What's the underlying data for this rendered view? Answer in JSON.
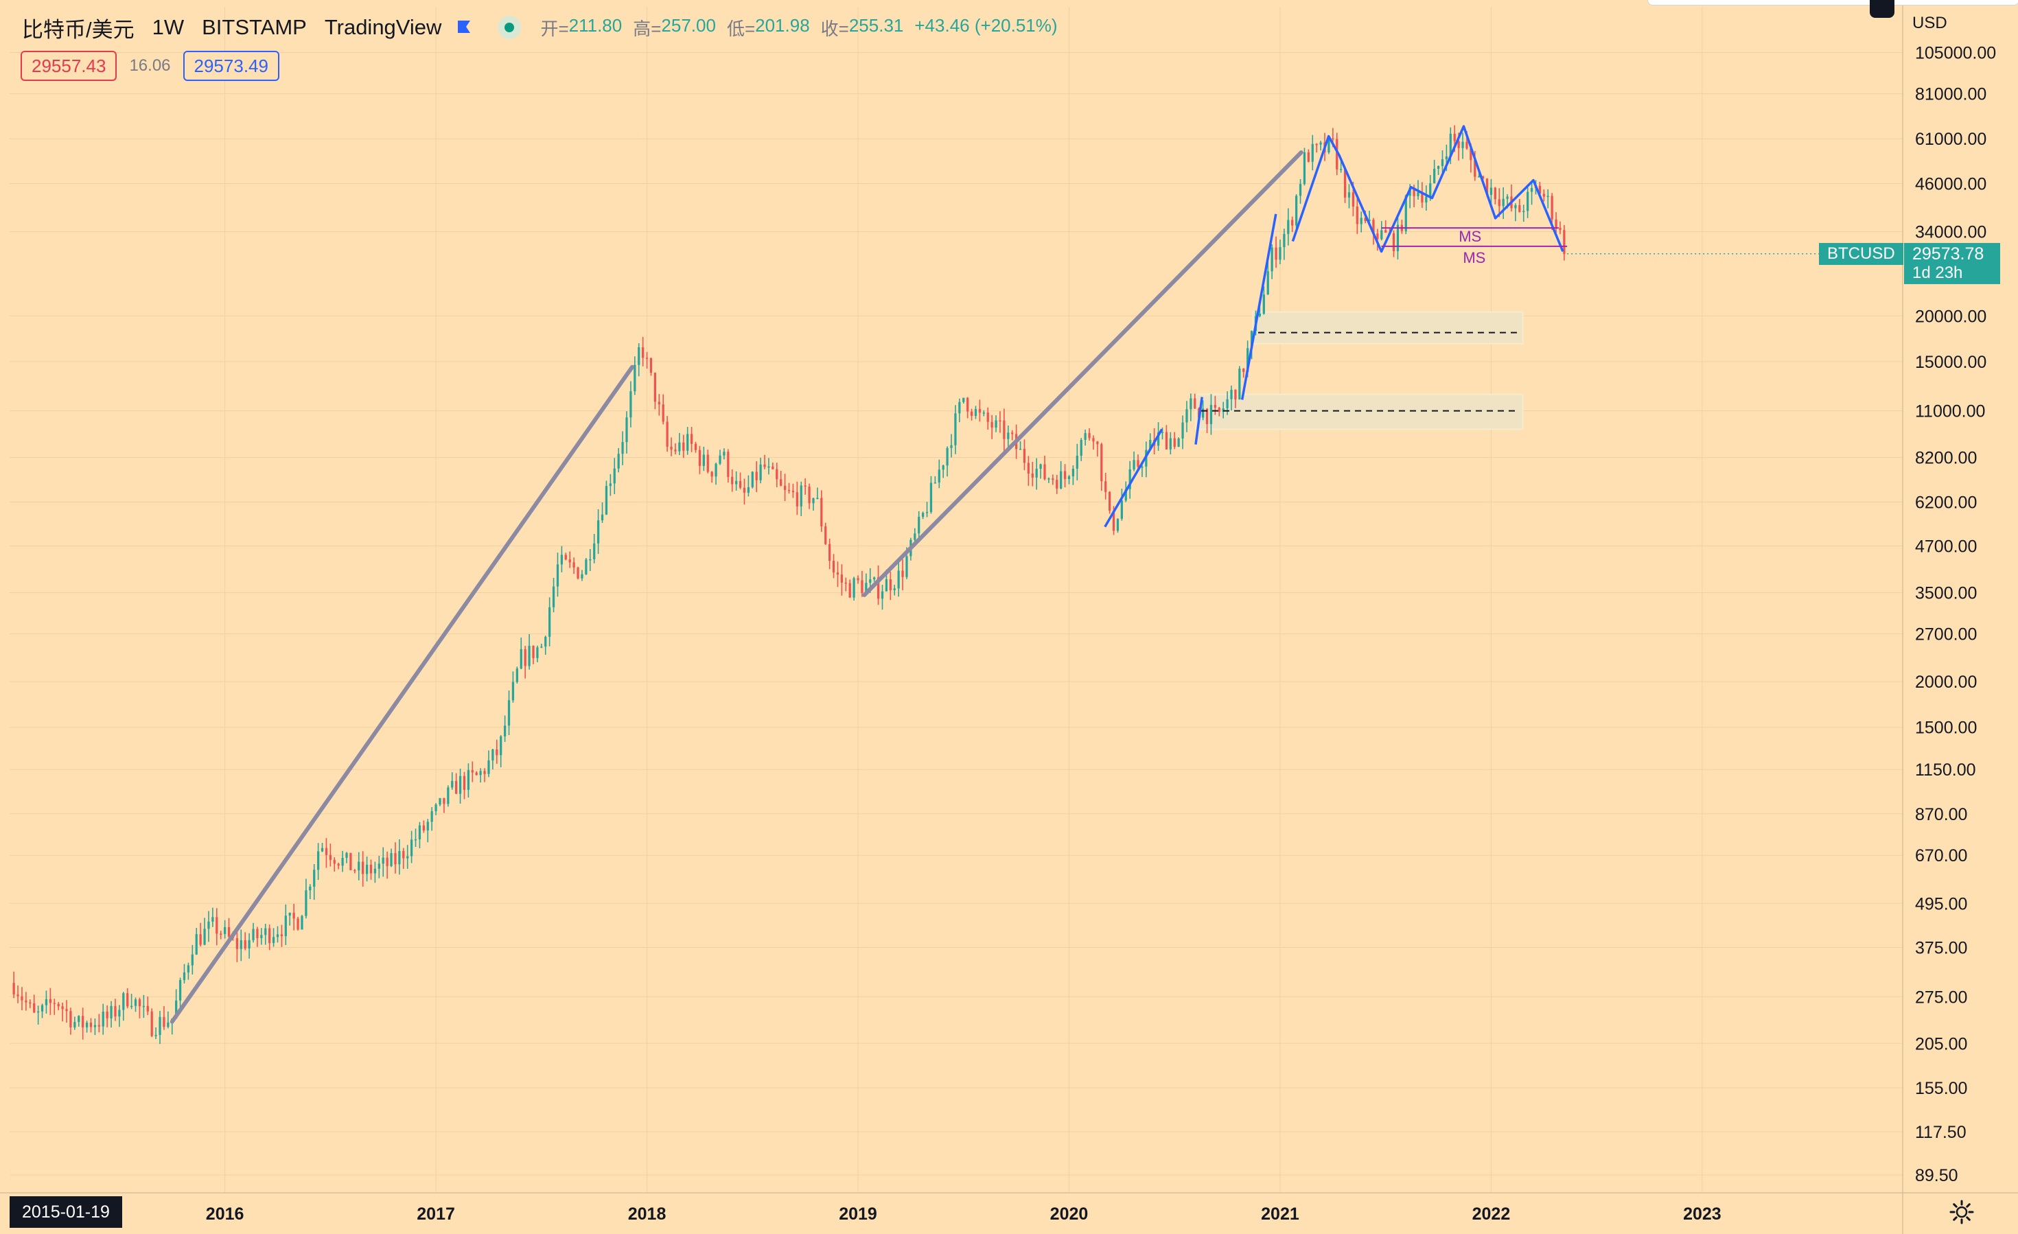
{
  "header": {
    "symbol": "比特币/美元",
    "timeframe": "1W",
    "exchange": "BITSTAMP",
    "source": "TradingView",
    "open_label": "开=",
    "open": "211.80",
    "high_label": "高=",
    "high": "257.00",
    "low_label": "低=",
    "low": "201.98",
    "close_label": "收=",
    "close": "255.31",
    "change": "+43.46 (+20.51%)"
  },
  "quote": {
    "bid": "29557.43",
    "spread": "16.06",
    "ask": "29573.49"
  },
  "price_axis": {
    "currency": "USD"
  },
  "last_price": {
    "symbol": "BTCUSD",
    "price": "29573.78",
    "countdown": "1d 23h"
  },
  "cursor_date": "2015-01-19",
  "colors": {
    "background": "#ffe0b3",
    "up": "#26a69a",
    "down": "#ef5350",
    "trend_gray": "#8c8aa3",
    "trend_blue": "#2962ff",
    "ms_purple": "#9c27b0",
    "zone": "#f0e3c3"
  },
  "chart_data": {
    "type": "candlestick",
    "scale": "log",
    "x_ticks": [
      "2016",
      "2017",
      "2018",
      "2019",
      "2020",
      "2021",
      "2022",
      "2023"
    ],
    "y_ticks": [
      "105000.00",
      "81000.00",
      "61000.00",
      "46000.00",
      "34000.00",
      "20000.00",
      "15000.00",
      "11000.00",
      "8200.00",
      "6200.00",
      "4700.00",
      "3500.00",
      "2700.00",
      "2000.00",
      "1500.00",
      "1150.00",
      "870.00",
      "670.00",
      "495.00",
      "375.00",
      "275.00",
      "205.00",
      "155.00",
      "117.50",
      "89.50"
    ],
    "ylim": [
      80,
      140000
    ],
    "xlim": [
      2014.98,
      2023.95
    ],
    "series_keypoints": [
      [
        2015.0,
        300
      ],
      [
        2015.1,
        240
      ],
      [
        2015.2,
        270
      ],
      [
        2015.3,
        230
      ],
      [
        2015.45,
        240
      ],
      [
        2015.55,
        280
      ],
      [
        2015.65,
        230
      ],
      [
        2015.75,
        240
      ],
      [
        2015.85,
        390
      ],
      [
        2015.95,
        430
      ],
      [
        2016.05,
        380
      ],
      [
        2016.2,
        410
      ],
      [
        2016.35,
        450
      ],
      [
        2016.45,
        720
      ],
      [
        2016.55,
        650
      ],
      [
        2016.65,
        600
      ],
      [
        2016.8,
        640
      ],
      [
        2016.95,
        800
      ],
      [
        2017.1,
        1050
      ],
      [
        2017.2,
        1100
      ],
      [
        2017.3,
        1300
      ],
      [
        2017.4,
        2300
      ],
      [
        2017.5,
        2500
      ],
      [
        2017.58,
        4200
      ],
      [
        2017.7,
        4000
      ],
      [
        2017.8,
        6500
      ],
      [
        2017.9,
        10000
      ],
      [
        2017.97,
        17000
      ],
      [
        2018.05,
        11500
      ],
      [
        2018.1,
        8500
      ],
      [
        2018.2,
        9000
      ],
      [
        2018.3,
        7500
      ],
      [
        2018.35,
        8500
      ],
      [
        2018.45,
        6300
      ],
      [
        2018.55,
        7800
      ],
      [
        2018.65,
        6500
      ],
      [
        2018.8,
        6400
      ],
      [
        2018.88,
        4000
      ],
      [
        2018.95,
        3600
      ],
      [
        2019.0,
        3700
      ],
      [
        2019.1,
        3600
      ],
      [
        2019.2,
        3900
      ],
      [
        2019.3,
        5500
      ],
      [
        2019.4,
        8000
      ],
      [
        2019.5,
        12000
      ],
      [
        2019.58,
        10500
      ],
      [
        2019.7,
        9500
      ],
      [
        2019.8,
        8000
      ],
      [
        2019.88,
        7300
      ],
      [
        2019.98,
        7200
      ],
      [
        2020.05,
        9000
      ],
      [
        2020.12,
        9800
      ],
      [
        2020.2,
        5200
      ],
      [
        2020.3,
        7500
      ],
      [
        2020.42,
        9300
      ],
      [
        2020.52,
        9200
      ],
      [
        2020.58,
        11500
      ],
      [
        2020.7,
        10500
      ],
      [
        2020.8,
        13000
      ],
      [
        2020.88,
        18500
      ],
      [
        2020.96,
        29000
      ],
      [
        2021.05,
        36000
      ],
      [
        2021.12,
        55000
      ],
      [
        2021.25,
        58000
      ],
      [
        2021.35,
        37000
      ],
      [
        2021.45,
        34000
      ],
      [
        2021.55,
        32000
      ],
      [
        2021.62,
        45000
      ],
      [
        2021.7,
        43000
      ],
      [
        2021.8,
        61000
      ],
      [
        2021.87,
        58000
      ],
      [
        2021.95,
        47000
      ],
      [
        2022.05,
        42000
      ],
      [
        2022.12,
        38000
      ],
      [
        2022.22,
        45000
      ],
      [
        2022.28,
        40000
      ],
      [
        2022.36,
        29573
      ]
    ],
    "annotations": {
      "gray_trendlines": [
        [
          [
            2015.75,
            235
          ],
          [
            2017.93,
            14500
          ]
        ],
        [
          [
            2019.03,
            3450
          ],
          [
            2021.1,
            56000
          ]
        ]
      ],
      "blue_trendlines": [
        [
          [
            2020.17,
            5300
          ],
          [
            2020.44,
            9800
          ]
        ],
        [
          [
            2020.6,
            8900
          ],
          [
            2020.63,
            12000
          ]
        ],
        [
          [
            2020.82,
            11800
          ],
          [
            2020.98,
            38000
          ]
        ],
        [
          [
            2021.06,
            32000
          ],
          [
            2021.23,
            62000
          ],
          [
            2021.28,
            55000
          ],
          [
            2021.48,
            30000
          ],
          [
            2021.62,
            45000
          ],
          [
            2021.72,
            42000
          ],
          [
            2021.87,
            66000
          ],
          [
            2022.02,
            37000
          ],
          [
            2022.2,
            47000
          ],
          [
            2022.34,
            30000
          ]
        ]
      ],
      "ms_lines": [
        {
          "label": "MS",
          "y": 34800,
          "x0": 2021.48,
          "x1": 2022.32
        },
        {
          "label": "MS",
          "y": 31000,
          "x0": 2021.48,
          "x1": 2022.36
        }
      ],
      "zones": [
        {
          "y0": 16800,
          "y1": 20500,
          "x0": 2020.87,
          "x1": 2022.15,
          "mid": 18000
        },
        {
          "y0": 9800,
          "y1": 12200,
          "x0": 2020.6,
          "x1": 2022.15,
          "mid": 11000
        }
      ]
    }
  }
}
